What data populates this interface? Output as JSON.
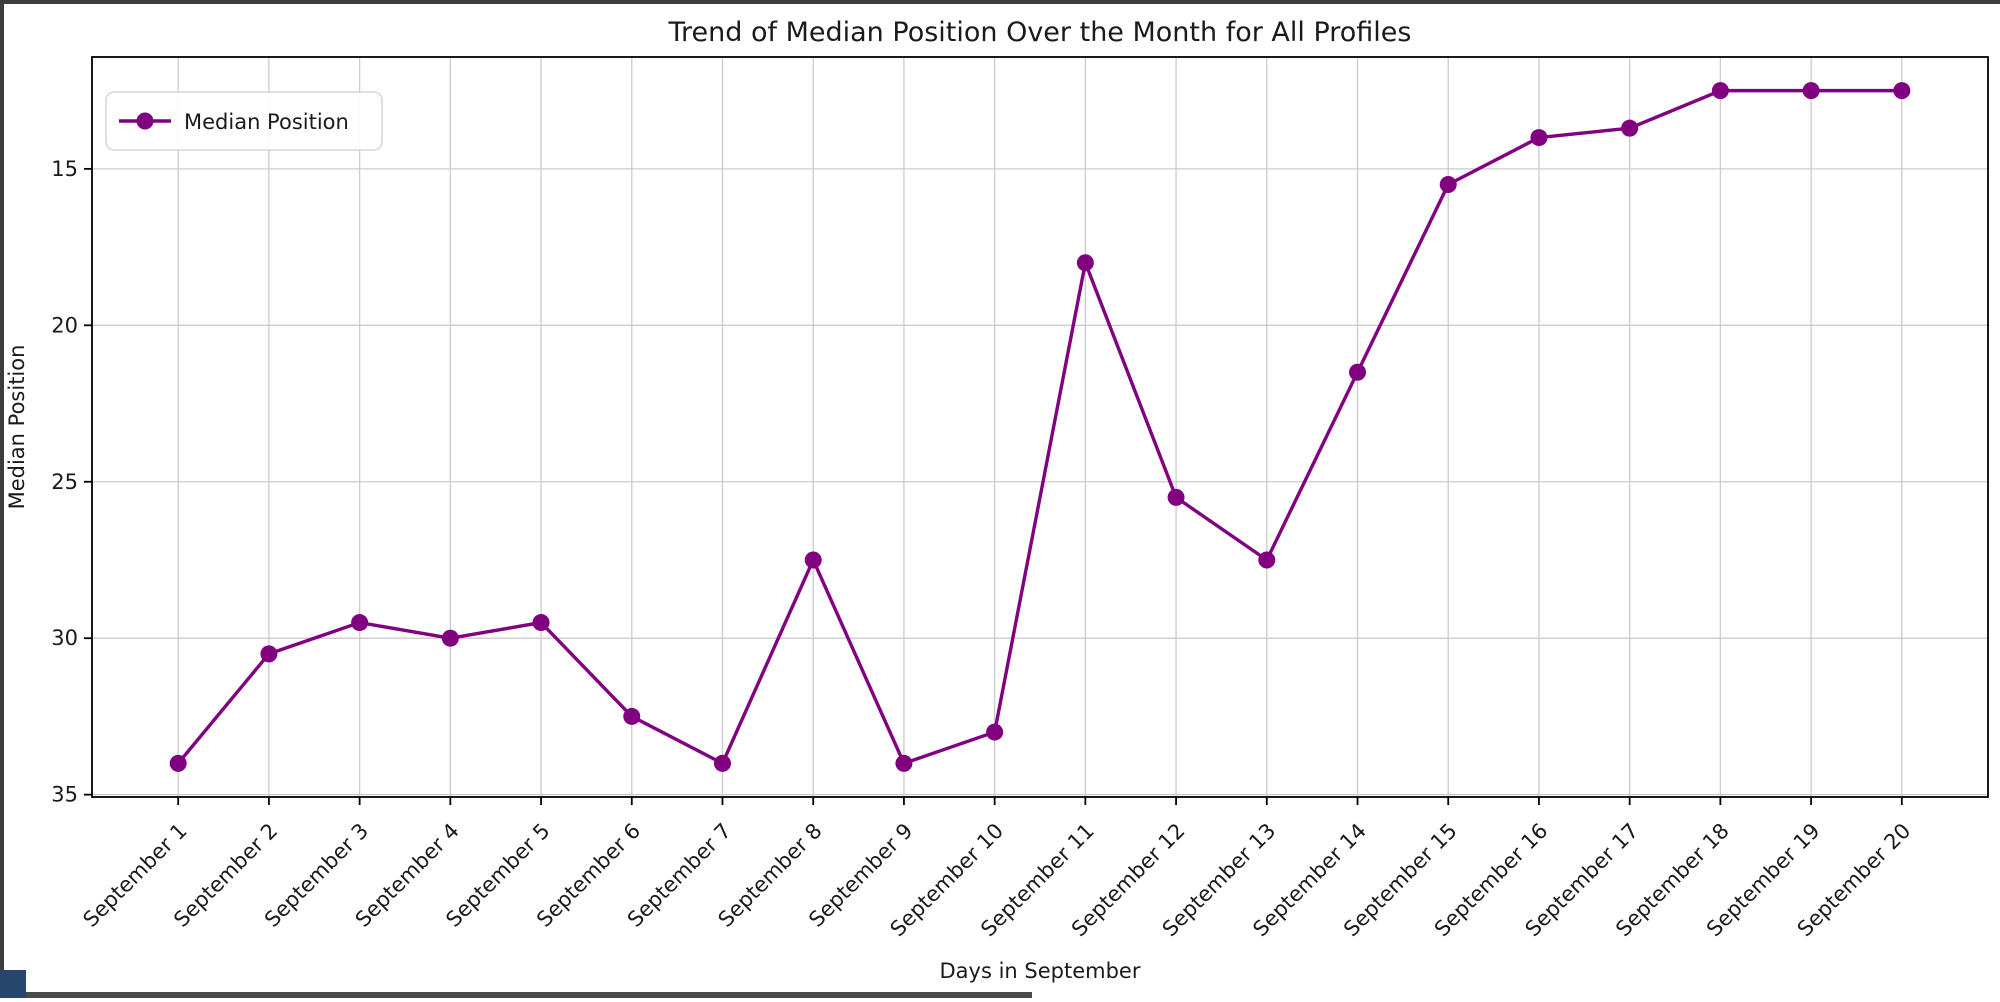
{
  "chart_data": {
    "type": "line",
    "title": "Trend of Median Position Over the Month for All Profiles",
    "xlabel": "Days in September",
    "ylabel": "Median Position",
    "legend": [
      "Median Position"
    ],
    "legend_position": "upper left",
    "categories": [
      "September 1",
      "September 2",
      "September 3",
      "September 4",
      "September 5",
      "September 6",
      "September 7",
      "September 8",
      "September 9",
      "September 10",
      "September 11",
      "September 12",
      "September 13",
      "September 14",
      "September 15",
      "September 16",
      "September 17",
      "September 18",
      "September 19",
      "September 20"
    ],
    "series": [
      {
        "name": "Median Position",
        "values": [
          34,
          30.5,
          29.5,
          30,
          29.5,
          32.5,
          34,
          27.5,
          34,
          33,
          18,
          25.5,
          27.5,
          21.5,
          15.5,
          14,
          13.7,
          12.5,
          12.5,
          12.5
        ]
      }
    ],
    "yticks": [
      15,
      20,
      25,
      30,
      35
    ],
    "ylim": [
      35.075,
      11.425
    ],
    "y_axis_inverted": true,
    "xtick_rotation_deg": 45,
    "grid": true,
    "line_color": "#800080",
    "marker": "o",
    "grid_color": "#cbcbcb",
    "spine_color": "#000000",
    "legend_border_color": "#d5d5d5",
    "legend_background": "#ffffff"
  },
  "screen_edges": {
    "top_color": "#3d3d3d",
    "left_color": "#3d3d3d",
    "bottom_color": "#4a4a4a",
    "corner_color": "#28456e"
  }
}
